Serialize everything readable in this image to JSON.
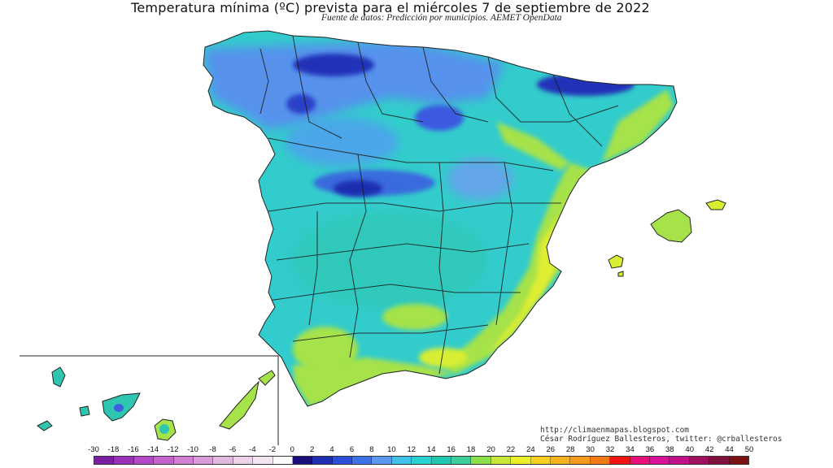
{
  "title": "Temperatura mínima (ºC) prevista para el miércoles 7 de septiembre de 2022",
  "subtitle": "Fuente de datos: Predicción por municipios. AEMET OpenData",
  "credits": {
    "url": "http://climaenmapas.blogspot.com",
    "author": "César Rodríguez Ballesteros, twitter: @crballesteros"
  },
  "legend": {
    "labels": [
      "-30",
      "-18",
      "-16",
      "-14",
      "-12",
      "-10",
      "-8",
      "-6",
      "-4",
      "-2",
      "0",
      "2",
      "4",
      "6",
      "8",
      "10",
      "12",
      "14",
      "16",
      "18",
      "20",
      "22",
      "24",
      "26",
      "28",
      "30",
      "32",
      "34",
      "36",
      "38",
      "40",
      "42",
      "44",
      "50"
    ],
    "colors": [
      "#7a1fa2",
      "#9b30b8",
      "#b548c8",
      "#c463cc",
      "#d07fd2",
      "#d99cd8",
      "#e2b8df",
      "#ecd2e8",
      "#f3e6f1",
      "#fafafa",
      "#1a0f7a",
      "#1f2fb0",
      "#2b4fd8",
      "#3d73ea",
      "#5c97f0",
      "#42c2e8",
      "#29d1d1",
      "#20c8b0",
      "#3ccf9a",
      "#8ee04a",
      "#c8e838",
      "#eaf02a",
      "#f5d020",
      "#f6b21e",
      "#f59a1a",
      "#f47a16",
      "#f01414",
      "#e8107a",
      "#d8109a",
      "#c0108a",
      "#a0105e",
      "#80103e",
      "#7a1010"
    ]
  },
  "map": {
    "description_colors": {
      "sea": "#ffffff",
      "north_cold": "#2030b8",
      "meseta_cool": "#5a7ef0",
      "interior": "#33cccc",
      "interior_alt": "#2fc4b4",
      "coast_warm": "#a6e24a",
      "med_warm": "#d8ee32",
      "border": "#222222"
    }
  }
}
